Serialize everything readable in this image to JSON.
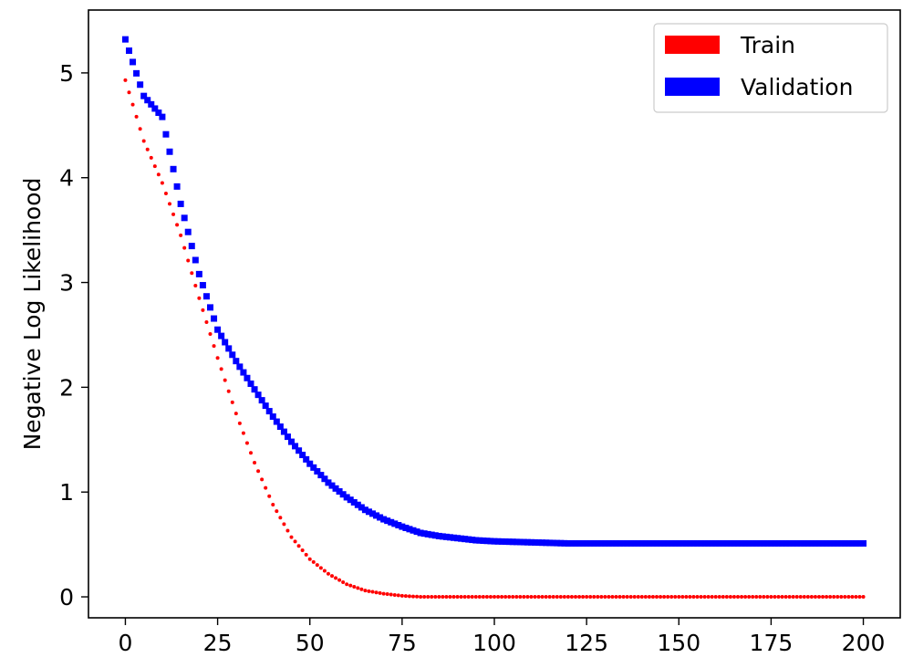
{
  "chart_data": {
    "type": "scatter",
    "title": "",
    "xlabel": "",
    "ylabel": "Negative Log Likelihood",
    "xlim": [
      -10,
      210
    ],
    "ylim": [
      -0.2,
      5.6
    ],
    "x_ticks": [
      0,
      25,
      50,
      75,
      100,
      125,
      150,
      175,
      200
    ],
    "y_ticks": [
      0,
      1,
      2,
      3,
      4,
      5
    ],
    "grid": false,
    "legend_position": "upper right",
    "x": [
      0,
      5,
      10,
      15,
      20,
      25,
      30,
      35,
      40,
      45,
      50,
      55,
      60,
      65,
      70,
      75,
      80,
      85,
      90,
      95,
      100,
      110,
      120,
      130,
      140,
      150,
      160,
      170,
      180,
      190,
      200
    ],
    "series": [
      {
        "name": "Train",
        "color": "#ff0000",
        "marker": "dot",
        "values": [
          4.93,
          4.35,
          3.95,
          3.45,
          2.85,
          2.28,
          1.75,
          1.28,
          0.88,
          0.57,
          0.36,
          0.22,
          0.12,
          0.06,
          0.03,
          0.01,
          0.0,
          0.0,
          0.0,
          0.0,
          0.0,
          0.0,
          0.0,
          0.0,
          0.0,
          0.0,
          0.0,
          0.0,
          0.0,
          0.0,
          0.0
        ]
      },
      {
        "name": "Validation",
        "color": "#0000ff",
        "marker": "square",
        "values": [
          5.32,
          4.78,
          4.58,
          3.75,
          3.08,
          2.55,
          2.25,
          1.98,
          1.72,
          1.48,
          1.27,
          1.09,
          0.95,
          0.83,
          0.74,
          0.67,
          0.61,
          0.58,
          0.56,
          0.54,
          0.53,
          0.52,
          0.51,
          0.51,
          0.51,
          0.51,
          0.51,
          0.51,
          0.51,
          0.51,
          0.51
        ]
      }
    ]
  }
}
